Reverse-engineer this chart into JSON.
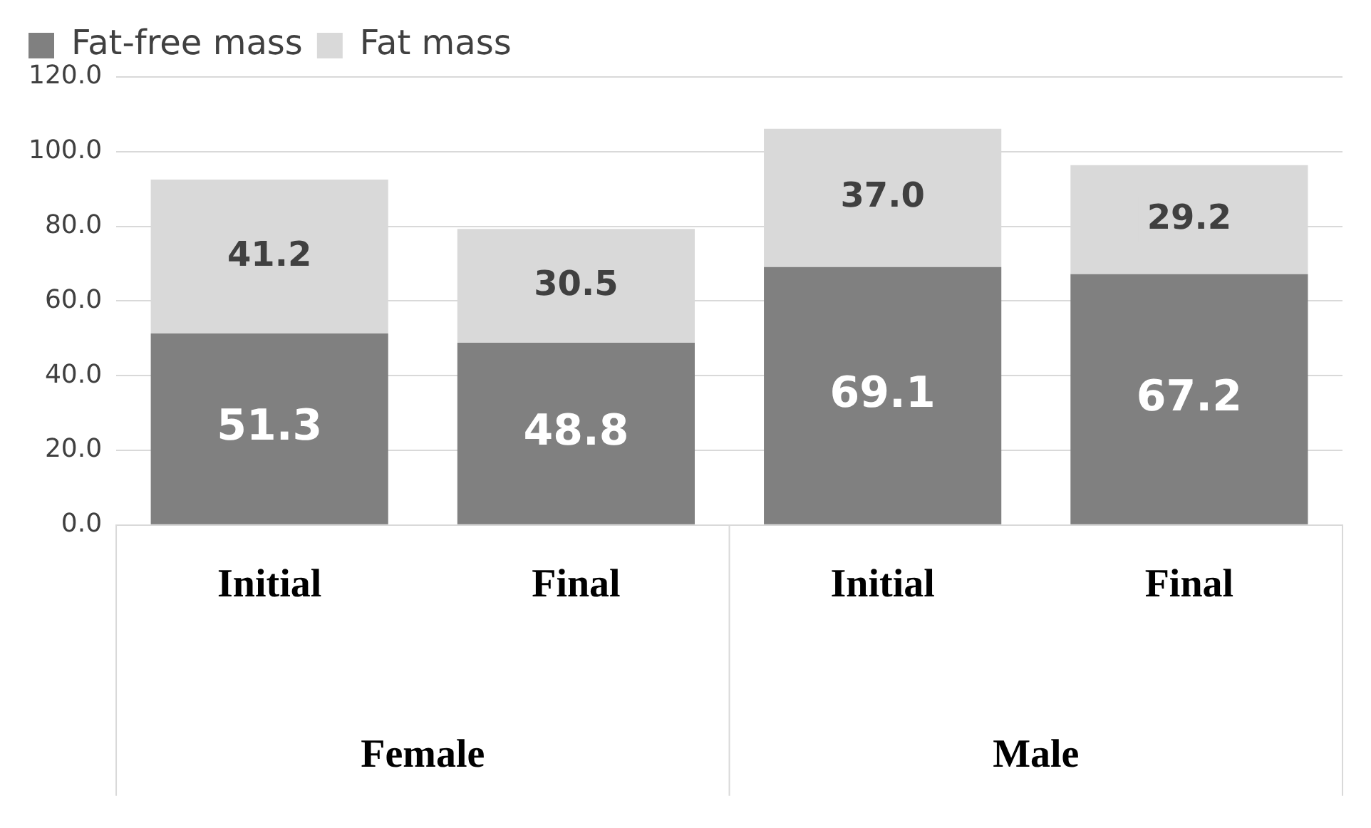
{
  "chart_data": {
    "type": "bar",
    "stacked": true,
    "categories": [
      "Initial",
      "Final",
      "Initial",
      "Final"
    ],
    "series": [
      {
        "name": "Fat-free mass",
        "color": "#808080",
        "values": [
          51.3,
          48.8,
          69.1,
          67.2
        ],
        "value_labels": [
          "51.3",
          "48.8",
          "69.1",
          "67.2"
        ]
      },
      {
        "name": "Fat mass",
        "color": "#d9d9d9",
        "values": [
          41.2,
          30.5,
          37.0,
          29.2
        ],
        "value_labels": [
          "41.2",
          "30.5",
          "37.0",
          "29.2"
        ]
      }
    ],
    "ylim": [
      0,
      120
    ],
    "yticks": [
      {
        "value": 0,
        "label": "0.0"
      },
      {
        "value": 20,
        "label": "20.0"
      },
      {
        "value": 40,
        "label": "40.0"
      },
      {
        "value": 60,
        "label": "60.0"
      },
      {
        "value": 80,
        "label": "80.0"
      },
      {
        "value": 100,
        "label": "100.0"
      },
      {
        "value": 120,
        "label": "120.0"
      }
    ],
    "grid": "y",
    "legend": "top",
    "annotations": [
      "Female",
      "Male"
    ]
  }
}
